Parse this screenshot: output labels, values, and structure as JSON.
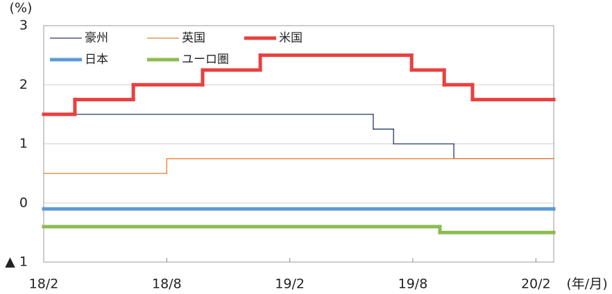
{
  "chart_data": {
    "type": "step",
    "y_unit_label": "(%)",
    "x_unit_label": "(年/月)",
    "xlim": [
      0,
      24.87
    ],
    "ylim": [
      -1,
      3
    ],
    "xticks": [
      {
        "value": 0,
        "label": "18/2"
      },
      {
        "value": 6,
        "label": "18/8"
      },
      {
        "value": 12,
        "label": "19/2"
      },
      {
        "value": 18,
        "label": "19/8"
      },
      {
        "value": 24,
        "label": "20/2"
      }
    ],
    "yticks": [
      {
        "value": -1,
        "label": "▲ 1"
      },
      0,
      1,
      2,
      3
    ],
    "grid": true,
    "series": [
      {
        "name": "豪州",
        "color": "#203864",
        "width": 1.3,
        "x": [
          0,
          16.07,
          17.06,
          20.0,
          24.87
        ],
        "values": [
          1.5,
          1.25,
          1.0,
          0.75,
          0.75
        ]
      },
      {
        "name": "英国",
        "color": "#ed7d31",
        "width": 1.3,
        "x": [
          0,
          6.0,
          24.87
        ],
        "values": [
          0.5,
          0.75,
          0.75
        ]
      },
      {
        "name": "米国",
        "color": "#e8403f",
        "width": 5,
        "x": [
          0,
          1.52,
          4.37,
          7.75,
          10.56,
          17.94,
          19.53,
          20.91,
          24.87
        ],
        "values": [
          1.5,
          1.75,
          2.0,
          2.25,
          2.5,
          2.25,
          2.0,
          1.75,
          1.75
        ]
      },
      {
        "name": "日本",
        "color": "#5b9bd5",
        "width": 5,
        "x": [
          0,
          24.87
        ],
        "values": [
          -0.1,
          -0.1
        ]
      },
      {
        "name": "ユーロ圏",
        "color": "#8cbc4f",
        "width": 5,
        "x": [
          0,
          19.32,
          24.87
        ],
        "values": [
          -0.4,
          -0.5,
          -0.5
        ]
      }
    ]
  }
}
